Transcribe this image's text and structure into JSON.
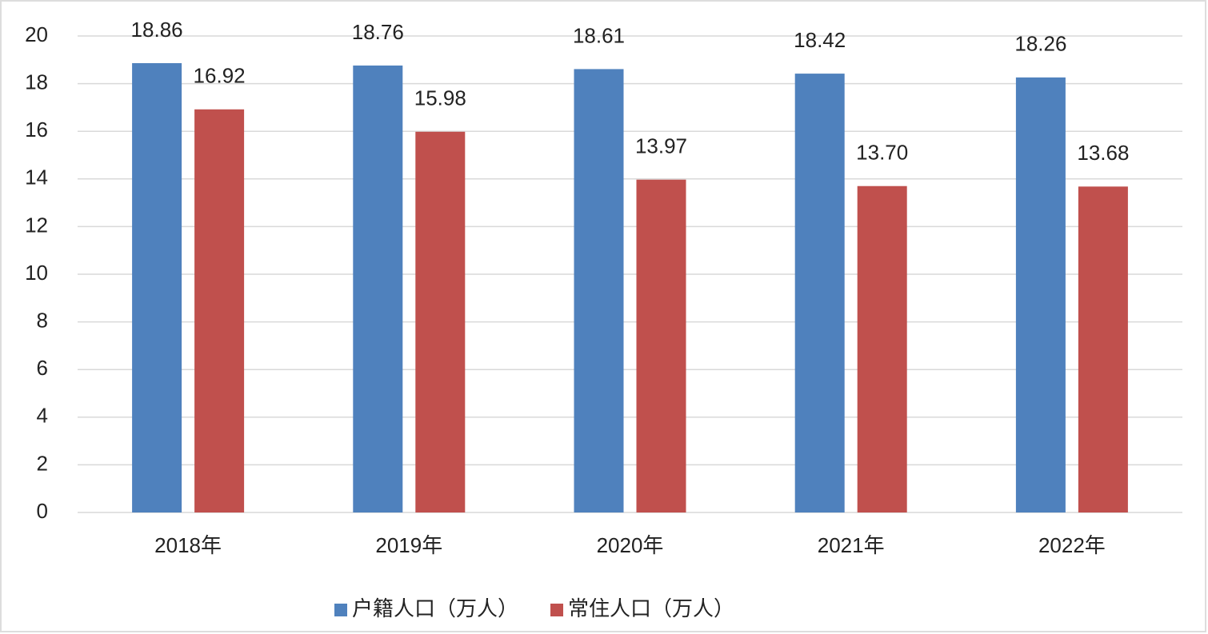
{
  "chart_data": {
    "type": "bar",
    "categories": [
      "2018年",
      "2019年",
      "2020年",
      "2021年",
      "2022年"
    ],
    "series": [
      {
        "name": "户籍人口（万人）",
        "color": "#4f81bd",
        "values": [
          18.86,
          18.76,
          18.61,
          18.42,
          18.26
        ],
        "value_labels": [
          "18.86",
          "18.76",
          "18.61",
          "18.42",
          "18.26"
        ]
      },
      {
        "name": "常住人口（万人）",
        "color": "#c0504d",
        "values": [
          16.92,
          15.98,
          13.97,
          13.7,
          13.68
        ],
        "value_labels": [
          "16.92",
          "15.98",
          "13.97",
          "13.70",
          "13.68"
        ]
      }
    ],
    "ylim": [
      0,
      20
    ],
    "yticks": [
      0,
      2,
      4,
      6,
      8,
      10,
      12,
      14,
      16,
      18,
      20
    ],
    "grid": true,
    "legend": "bottom"
  }
}
